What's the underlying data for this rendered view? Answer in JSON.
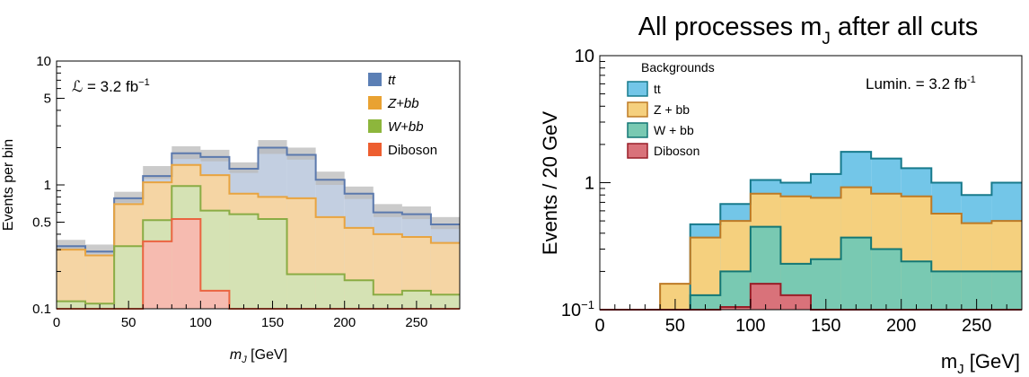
{
  "chart_data": [
    {
      "type": "histogram-stacked",
      "yscale": "log",
      "xlim": [
        0,
        280
      ],
      "ylim": [
        0.1,
        10
      ],
      "bin_edges": [
        0,
        20,
        40,
        60,
        80,
        100,
        120,
        140,
        160,
        180,
        200,
        220,
        240,
        260,
        280
      ],
      "xlabel_prefix": "m",
      "xlabel_sub": "J",
      "xlabel_units": " [GeV]",
      "ylabel": "Events per bin",
      "lumi_label": "ℒ = 3.2 fb",
      "lumi_sup": "−1",
      "xticks": [
        {
          "v": 0,
          "label": "0"
        },
        {
          "v": 50,
          "label": "50"
        },
        {
          "v": 100,
          "label": "100"
        },
        {
          "v": 150,
          "label": "150"
        },
        {
          "v": 200,
          "label": "200"
        },
        {
          "v": 250,
          "label": "250"
        }
      ],
      "yticks": [
        {
          "v": 0.1,
          "label": "0.1"
        },
        {
          "v": 0.5,
          "label": "0.5"
        },
        {
          "v": 1,
          "label": "1"
        },
        {
          "v": 5,
          "label": "5"
        },
        {
          "v": 10,
          "label": "10"
        }
      ],
      "series": [
        {
          "name": "tt",
          "fill": "#c3cfe1",
          "stroke": "#5b79ad",
          "legend_color": "#5b7fb5",
          "values": [
            0.32,
            0.29,
            0.78,
            1.18,
            1.8,
            1.68,
            1.35,
            2.0,
            1.75,
            1.1,
            0.85,
            0.6,
            0.58,
            0.48
          ]
        },
        {
          "name": "Z+bb",
          "fill": "#f5d5a4",
          "stroke": "#e8a440",
          "legend_color": "#e9a232",
          "values": [
            0.3,
            0.27,
            0.7,
            1.05,
            1.45,
            1.2,
            0.85,
            0.8,
            0.78,
            0.55,
            0.45,
            0.4,
            0.38,
            0.34
          ]
        },
        {
          "name": "W+bb",
          "fill": "#d5e2b4",
          "stroke": "#8aac44",
          "legend_color": "#8db63c",
          "values": [
            0.115,
            0.11,
            0.32,
            0.52,
            0.98,
            0.62,
            0.58,
            0.53,
            0.19,
            0.19,
            0.17,
            0.13,
            0.14,
            0.13
          ]
        },
        {
          "name": "Diboson",
          "fill": "#f6bbb0",
          "stroke": "#ea6440",
          "legend_color": "#ed5e30",
          "values": [
            0,
            0,
            0,
            0.35,
            0.53,
            0.14,
            0,
            0,
            0,
            0,
            0,
            0,
            0,
            0
          ]
        }
      ],
      "uncertainty_band": {
        "color": "#b9b9b9",
        "lower": [
          0.3,
          0.28,
          0.72,
          1.12,
          1.62,
          1.55,
          1.25,
          1.78,
          1.6,
          1.0,
          0.77,
          0.55,
          0.53,
          0.44
        ],
        "upper": [
          0.36,
          0.33,
          0.88,
          1.42,
          2.05,
          1.92,
          1.52,
          2.3,
          2.0,
          1.28,
          0.97,
          0.7,
          0.67,
          0.55
        ]
      }
    },
    {
      "type": "histogram-stacked",
      "yscale": "log",
      "xlim": [
        0,
        280
      ],
      "ylim": [
        0.1,
        10
      ],
      "bin_edges": [
        0,
        20,
        40,
        60,
        80,
        100,
        120,
        140,
        160,
        180,
        200,
        220,
        240,
        260,
        280
      ],
      "title_prefix": "All processes m",
      "title_sub": "J",
      "title_suffix": " after all cuts",
      "xlabel_prefix": "m",
      "xlabel_sub": "J",
      "xlabel_units": " [GeV]",
      "ylabel": "Events / 20 GeV",
      "lumi_label": "Lumin. = 3.2 fb",
      "lumi_sup": "-1",
      "legend_header": "Backgrounds",
      "xticks": [
        {
          "v": 0,
          "label": "0"
        },
        {
          "v": 50,
          "label": "50"
        },
        {
          "v": 100,
          "label": "100"
        },
        {
          "v": 150,
          "label": "150"
        },
        {
          "v": 200,
          "label": "200"
        },
        {
          "v": 250,
          "label": "250"
        }
      ],
      "yticks": [
        {
          "v": 0.1,
          "label": "10",
          "sup": "−1"
        },
        {
          "v": 1,
          "label": "1"
        },
        {
          "v": 10,
          "label": "10"
        }
      ],
      "series": [
        {
          "name": "tt",
          "fill": "#73c6e8",
          "stroke": "#177a8c",
          "values": [
            0,
            0,
            0,
            0.47,
            0.68,
            1.05,
            1.0,
            1.17,
            1.75,
            1.55,
            1.3,
            1.0,
            0.8,
            1.0
          ]
        },
        {
          "name": "Z + bb",
          "fill": "#f5d07e",
          "stroke": "#bd7a25",
          "values": [
            0,
            0,
            0.16,
            0.37,
            0.5,
            0.82,
            0.78,
            0.76,
            0.92,
            0.82,
            0.78,
            0.57,
            0.48,
            0.5
          ]
        },
        {
          "name": "W + bb",
          "fill": "#79c9b2",
          "stroke": "#137775",
          "values": [
            0,
            0,
            0,
            0.13,
            0.2,
            0.45,
            0.23,
            0.25,
            0.37,
            0.3,
            0.24,
            0.2,
            0.2,
            0.2
          ]
        },
        {
          "name": "Diboson",
          "fill": "#d9727a",
          "stroke": "#991e28",
          "values": [
            0,
            0,
            0,
            0,
            0.105,
            0.16,
            0.13,
            0,
            0,
            0,
            0,
            0,
            0,
            0
          ]
        }
      ]
    }
  ]
}
